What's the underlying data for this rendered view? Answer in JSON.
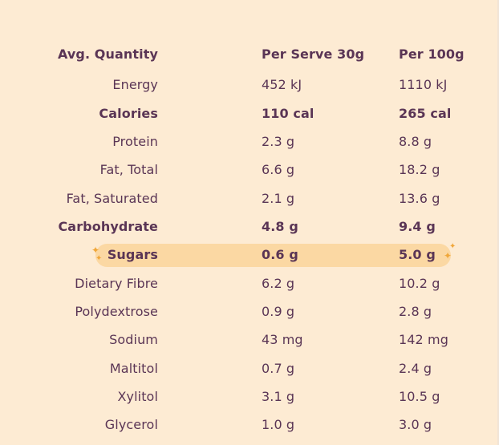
{
  "header": {
    "col_name": "Avg. Quantity",
    "col_serve": "Per Serve 30g",
    "col_100": "Per 100g"
  },
  "rows": [
    {
      "name": "Energy",
      "serve": "452 kJ",
      "per100": "1110 kJ"
    },
    {
      "name": "Calories",
      "serve": "110 cal",
      "per100": "265 cal"
    },
    {
      "name": "Protein",
      "serve": "2.3 g",
      "per100": "8.8 g"
    },
    {
      "name": "Fat, Total",
      "serve": "6.6 g",
      "per100": "18.2 g"
    },
    {
      "name": "Fat, Saturated",
      "serve": "2.1 g",
      "per100": "13.6 g"
    },
    {
      "name": "Carbohydrate",
      "serve": "4.8 g",
      "per100": "9.4 g"
    },
    {
      "name": "Sugars",
      "serve": "0.6 g",
      "per100": "5.0 g"
    },
    {
      "name": "Dietary Fibre",
      "serve": "6.2 g",
      "per100": "10.2 g"
    },
    {
      "name": "Polydextrose",
      "serve": "0.9 g",
      "per100": "2.8 g"
    },
    {
      "name": "Sodium",
      "serve": "43 mg",
      "per100": "142 mg"
    },
    {
      "name": "Maltitol",
      "serve": "0.7 g",
      "per100": "2.4 g"
    },
    {
      "name": "Xylitol",
      "serve": "3.1 g",
      "per100": "10.5 g"
    },
    {
      "name": "Glycerol",
      "serve": "1.0 g",
      "per100": "3.0 g"
    }
  ],
  "colors": {
    "background": "#fdebd3",
    "text": "#5a3555",
    "highlight": "#fbd8a3",
    "sparkle": "#f0a73a"
  },
  "icons": {
    "sparkle": "sparkle-icon"
  }
}
